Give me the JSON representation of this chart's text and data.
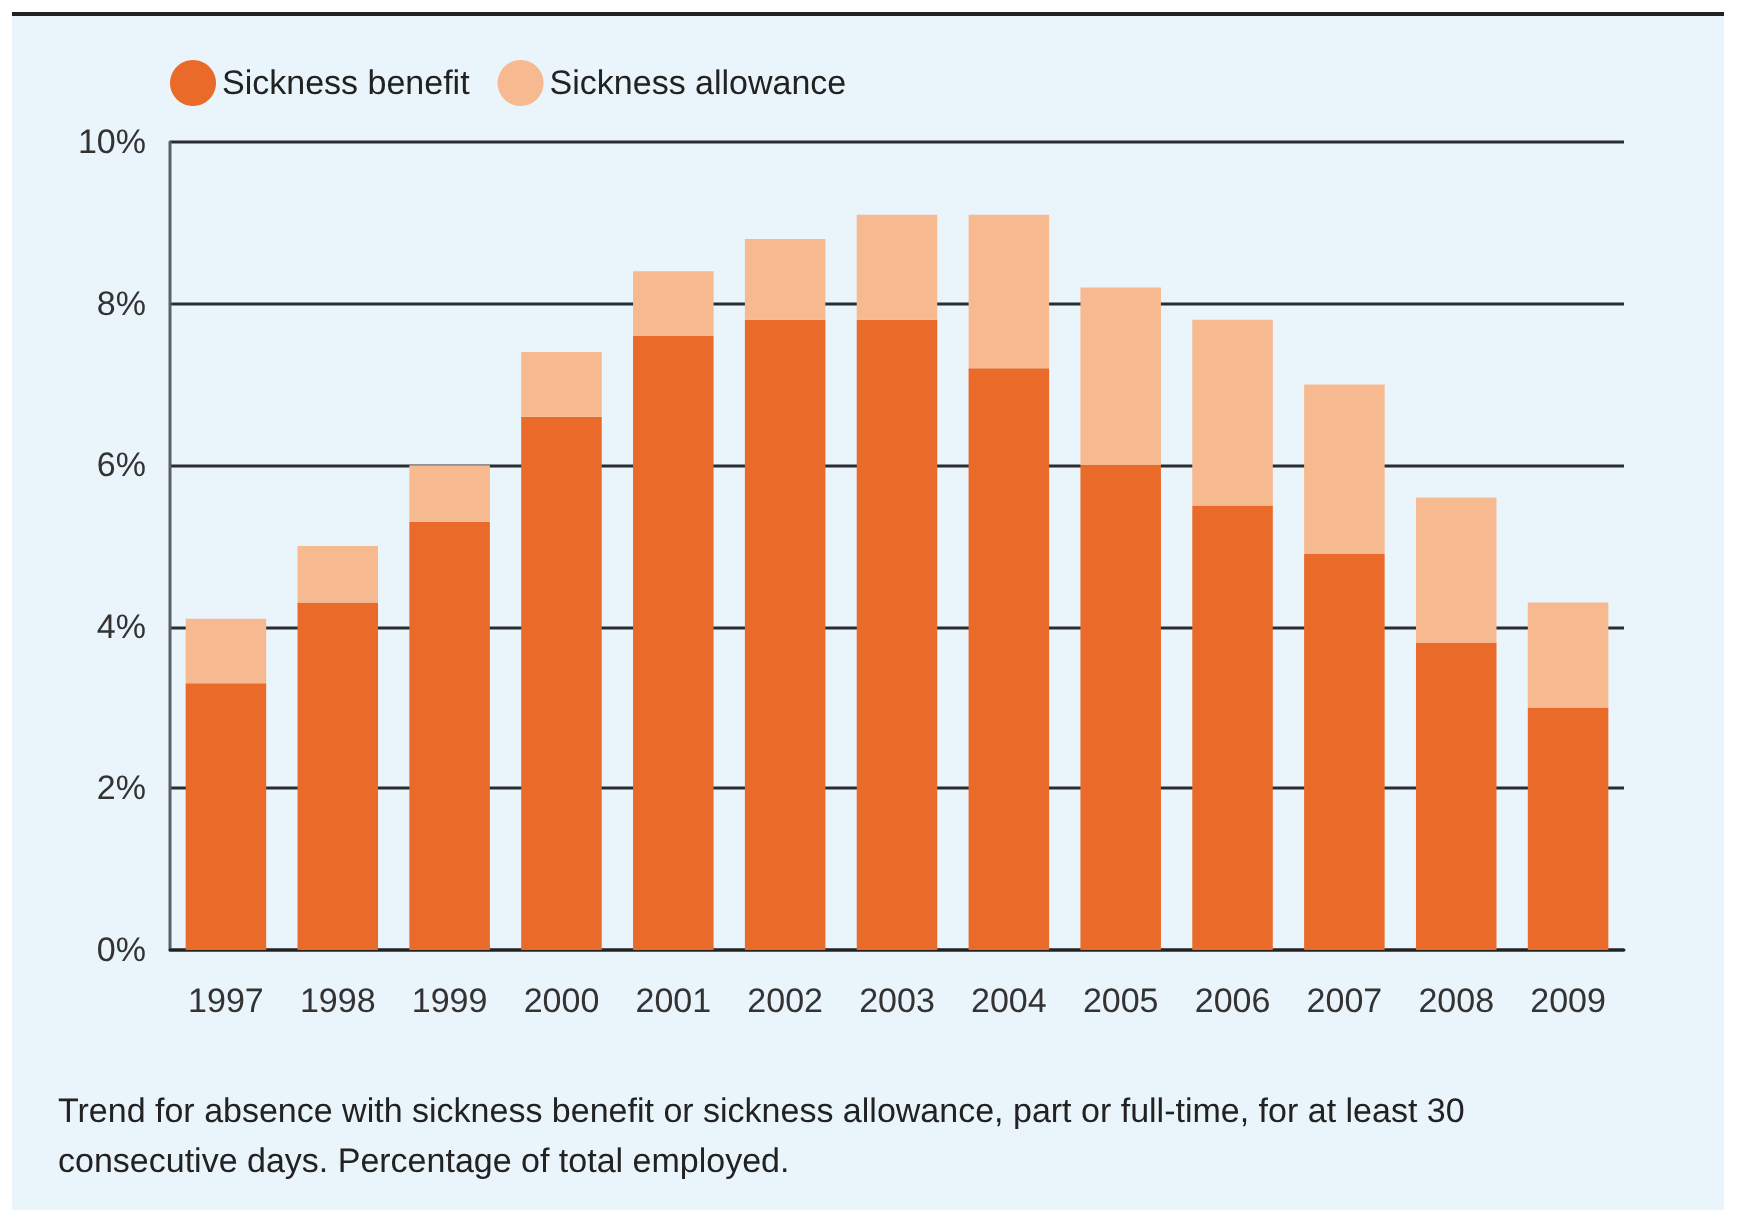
{
  "chart_data": {
    "type": "bar",
    "stacked": true,
    "categories": [
      "1997",
      "1998",
      "1999",
      "2000",
      "2001",
      "2002",
      "2003",
      "2004",
      "2005",
      "2006",
      "2007",
      "2008",
      "2009"
    ],
    "series": [
      {
        "name": "Sickness benefit",
        "color": "#ea6a29",
        "values": [
          3.3,
          4.3,
          5.3,
          6.6,
          7.6,
          7.8,
          7.8,
          7.2,
          6.0,
          5.5,
          4.9,
          3.8,
          3.0
        ]
      },
      {
        "name": "Sickness allowance",
        "color": "#f7b990",
        "values": [
          0.8,
          0.7,
          0.7,
          0.8,
          0.8,
          1.0,
          1.3,
          1.9,
          2.2,
          2.3,
          2.1,
          1.8,
          1.3
        ]
      }
    ],
    "ylim": [
      0,
      10
    ],
    "yticks": [
      {
        "value": 0,
        "label": "0%"
      },
      {
        "value": 2,
        "label": "2%"
      },
      {
        "value": 4,
        "label": "4%"
      },
      {
        "value": 6,
        "label": "6%"
      },
      {
        "value": 8,
        "label": "8%"
      },
      {
        "value": 10,
        "label": "10%"
      }
    ],
    "grid": "y",
    "legend": "top left",
    "annotations": [
      "Trend for absence with sickness benefit or sickness allowance, part or full-time, for at least 30 consecutive days. Percentage of total employed."
    ]
  }
}
